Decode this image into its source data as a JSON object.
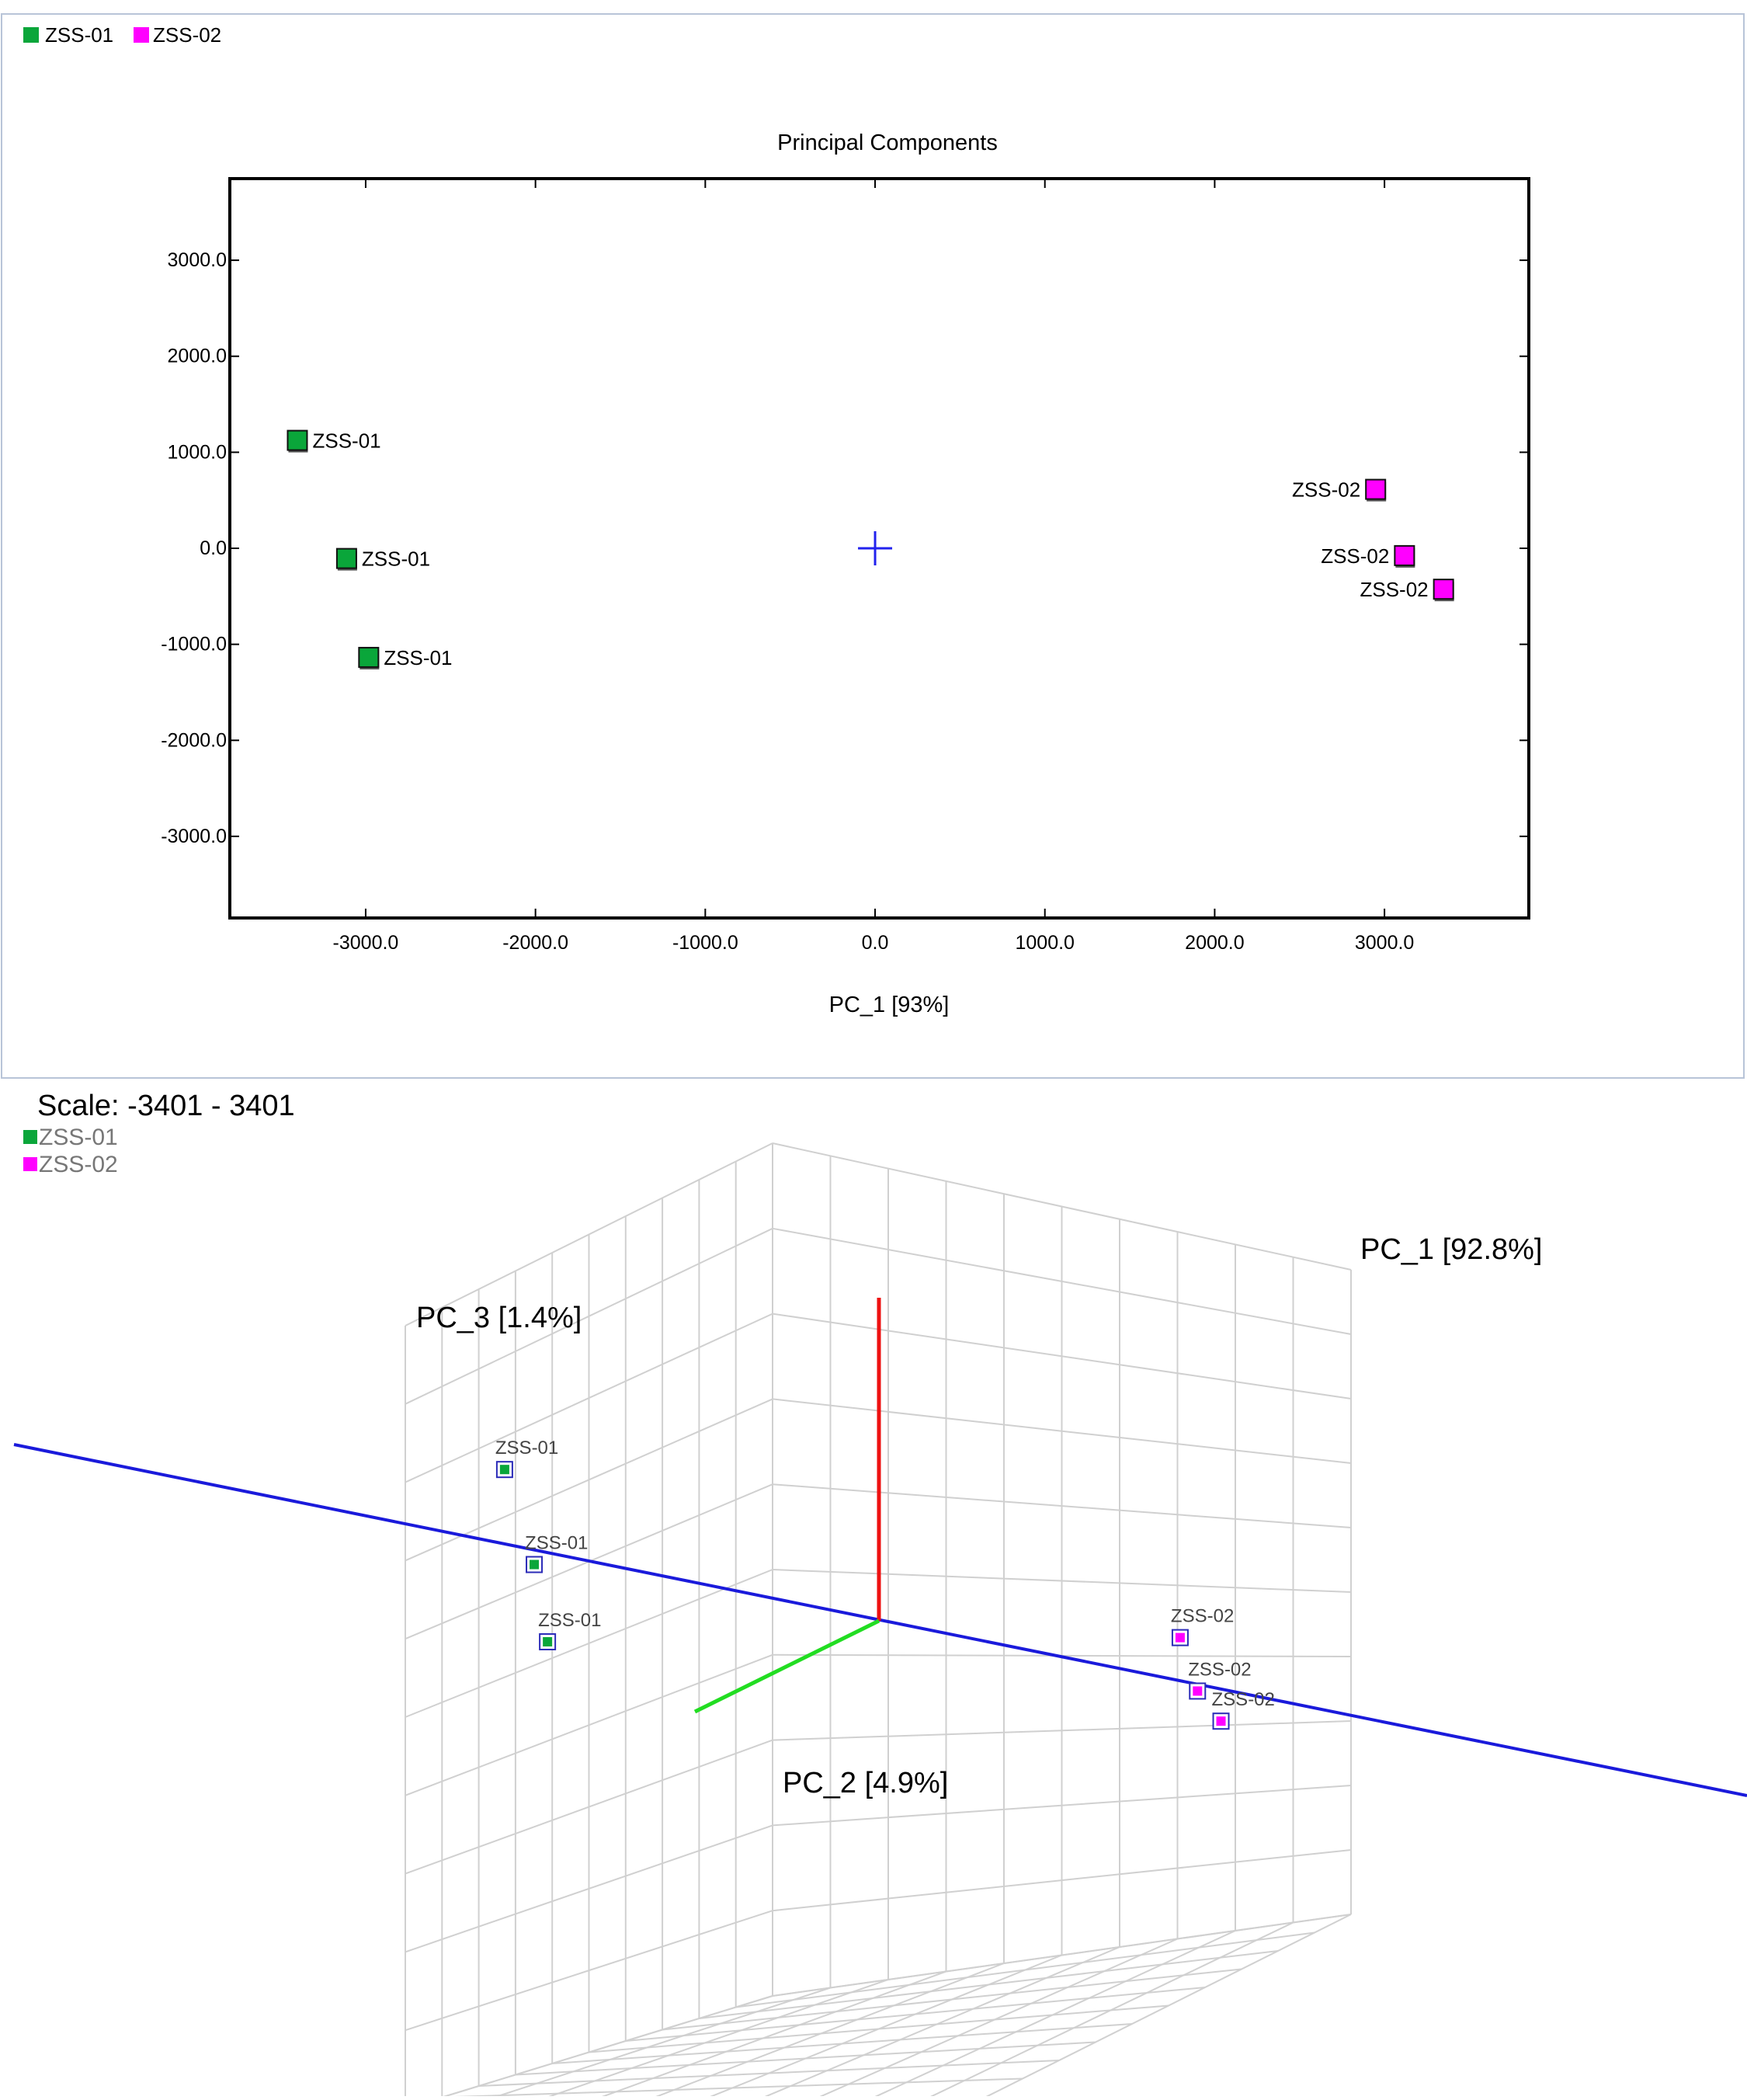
{
  "legend": [
    {
      "label": "ZSS-01",
      "color": "#0aa63a"
    },
    {
      "label": "ZSS-02",
      "color": "#ff00ff"
    }
  ],
  "chart_data": [
    {
      "type": "scatter",
      "title": "Principal Components",
      "xlabel": "PC_1 [93%]",
      "ylabel": "",
      "xlim": [
        -3800,
        3850
      ],
      "ylim": [
        -3850,
        3850
      ],
      "xticks": [
        -3000,
        -2000,
        -1000,
        0,
        1000,
        2000,
        3000
      ],
      "xtick_labels": [
        "-3000.0",
        "-2000.0",
        "-1000.0",
        "0.0",
        "1000.0",
        "2000.0",
        "3000.0"
      ],
      "yticks": [
        3000,
        2000,
        1000,
        0,
        -1000,
        -2000,
        -3000
      ],
      "ytick_labels": [
        "3000.0",
        "2000.0",
        "1000.0",
        "0.0",
        "-1000.0",
        "-2000.0",
        "-3000.0"
      ],
      "origin_marker": [
        0,
        0
      ],
      "series": [
        {
          "name": "ZSS-01",
          "color": "#0aa63a",
          "points": [
            {
              "x": -3400,
              "y": 1120,
              "label": "ZSS-01"
            },
            {
              "x": -3110,
              "y": -110,
              "label": "ZSS-01"
            },
            {
              "x": -2980,
              "y": -1140,
              "label": "ZSS-01"
            }
          ]
        },
        {
          "name": "ZSS-02",
          "color": "#ff00ff",
          "points": [
            {
              "x": 2950,
              "y": 610,
              "label": "ZSS-02"
            },
            {
              "x": 3120,
              "y": -80,
              "label": "ZSS-02"
            },
            {
              "x": 3350,
              "y": -430,
              "label": "ZSS-02"
            }
          ]
        }
      ]
    },
    {
      "type": "scatter3d",
      "scale_label": "Scale: -3401 - 3401",
      "axes": {
        "pc1": "PC_1 [92.8%]",
        "pc2": "PC_2 [4.9%]",
        "pc3": "PC_3 [1.4%]"
      },
      "scale_range": [
        -3401,
        3401
      ],
      "axis_colors": {
        "pc1": "#1a1adb",
        "pc2": "#22dd22",
        "pc3": "#ee1111"
      },
      "series": [
        {
          "name": "ZSS-01",
          "color": "#0aa63a",
          "points": [
            {
              "x": -3400,
              "y": 1120,
              "label": "ZSS-01"
            },
            {
              "x": -3110,
              "y": -110,
              "label": "ZSS-01"
            },
            {
              "x": -2980,
              "y": -1140,
              "label": "ZSS-01"
            }
          ]
        },
        {
          "name": "ZSS-02",
          "color": "#ff00ff",
          "points": [
            {
              "x": 2950,
              "y": 610,
              "label": "ZSS-02"
            },
            {
              "x": 3120,
              "y": -80,
              "label": "ZSS-02"
            },
            {
              "x": 3350,
              "y": -430,
              "label": "ZSS-02"
            }
          ]
        }
      ]
    }
  ]
}
